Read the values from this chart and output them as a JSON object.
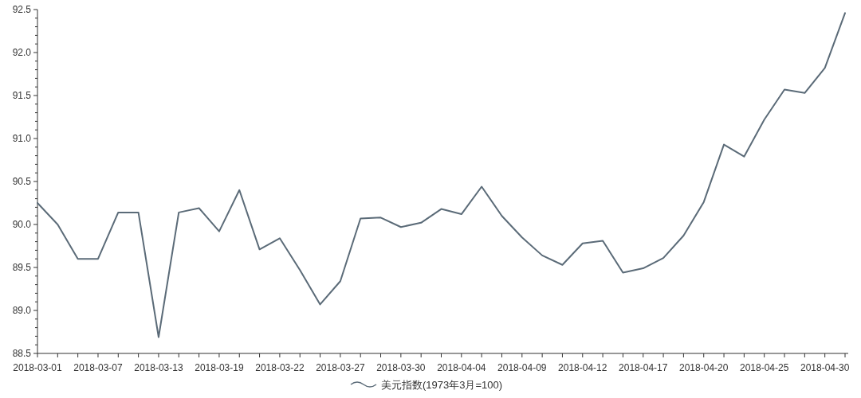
{
  "chart_data": {
    "type": "line",
    "categories": [
      "2018-03-01",
      null,
      null,
      "2018-03-07",
      null,
      null,
      "2018-03-13",
      null,
      null,
      "2018-03-19",
      null,
      null,
      "2018-03-22",
      null,
      null,
      "2018-03-27",
      null,
      null,
      "2018-03-30",
      null,
      null,
      "2018-04-04",
      null,
      null,
      "2018-04-09",
      null,
      null,
      "2018-04-12",
      null,
      null,
      "2018-04-17",
      null,
      null,
      "2018-04-20",
      null,
      null,
      "2018-04-25",
      null,
      null,
      "2018-04-30",
      null
    ],
    "series": [
      {
        "name": "美元指数(1973年3月=100)",
        "color": "#5b6b78",
        "values": [
          90.25,
          90.0,
          89.6,
          89.6,
          90.14,
          90.14,
          88.69,
          90.14,
          90.19,
          89.92,
          90.4,
          89.71,
          89.84,
          89.47,
          89.07,
          89.34,
          90.07,
          90.08,
          89.97,
          90.02,
          90.18,
          90.12,
          90.44,
          90.1,
          89.85,
          89.64,
          89.53,
          89.78,
          89.81,
          89.44,
          89.49,
          89.61,
          89.87,
          90.26,
          90.93,
          90.79,
          91.22,
          91.57,
          91.53,
          91.82,
          92.46
        ]
      }
    ],
    "ylim": [
      88.5,
      92.5
    ],
    "yticks": [
      88.5,
      {
        "value": 88.6,
        "label": null
      },
      {
        "value": 88.7,
        "label": null
      },
      {
        "value": 88.8,
        "label": null
      },
      {
        "value": 88.9,
        "label": null
      },
      "89.0",
      {
        "value": 89.1,
        "label": null
      },
      {
        "value": 89.2,
        "label": null
      },
      {
        "value": 89.3,
        "label": null
      },
      {
        "value": 89.4,
        "label": null
      },
      89.5,
      {
        "value": 89.6,
        "label": null
      },
      {
        "value": 89.7,
        "label": null
      },
      {
        "value": 89.8,
        "label": null
      },
      {
        "value": 89.9,
        "label": null
      },
      {
        "value": 90.0,
        "label": "90.0"
      },
      {
        "value": 90.1,
        "label": null
      },
      {
        "value": 90.2,
        "label": null
      },
      {
        "value": 90.3,
        "label": null
      },
      {
        "value": 90.4,
        "label": null
      },
      90.5,
      {
        "value": 90.6,
        "label": null
      },
      {
        "value": 90.7,
        "label": null
      },
      {
        "value": 90.8,
        "label": null
      },
      {
        "value": 90.9,
        "label": null
      },
      {
        "value": 91.0,
        "label": "91.0"
      },
      {
        "value": 91.1,
        "label": null
      },
      {
        "value": 91.2,
        "label": null
      },
      {
        "value": 91.3,
        "label": null
      },
      {
        "value": 91.4,
        "label": null
      },
      91.5,
      {
        "value": 91.6,
        "label": null
      },
      {
        "value": 91.7,
        "label": null
      },
      {
        "value": 91.8,
        "label": null
      },
      {
        "value": 91.9,
        "label": null
      },
      {
        "value": 92.0,
        "label": "92.0"
      },
      {
        "value": 92.1,
        "label": null
      },
      {
        "value": 92.2,
        "label": null
      },
      {
        "value": 92.3,
        "label": null
      },
      {
        "value": 92.4,
        "label": null
      },
      92.5
    ],
    "grid": false,
    "legend": "bottom",
    "marker": "none",
    "line_style": "solid"
  }
}
